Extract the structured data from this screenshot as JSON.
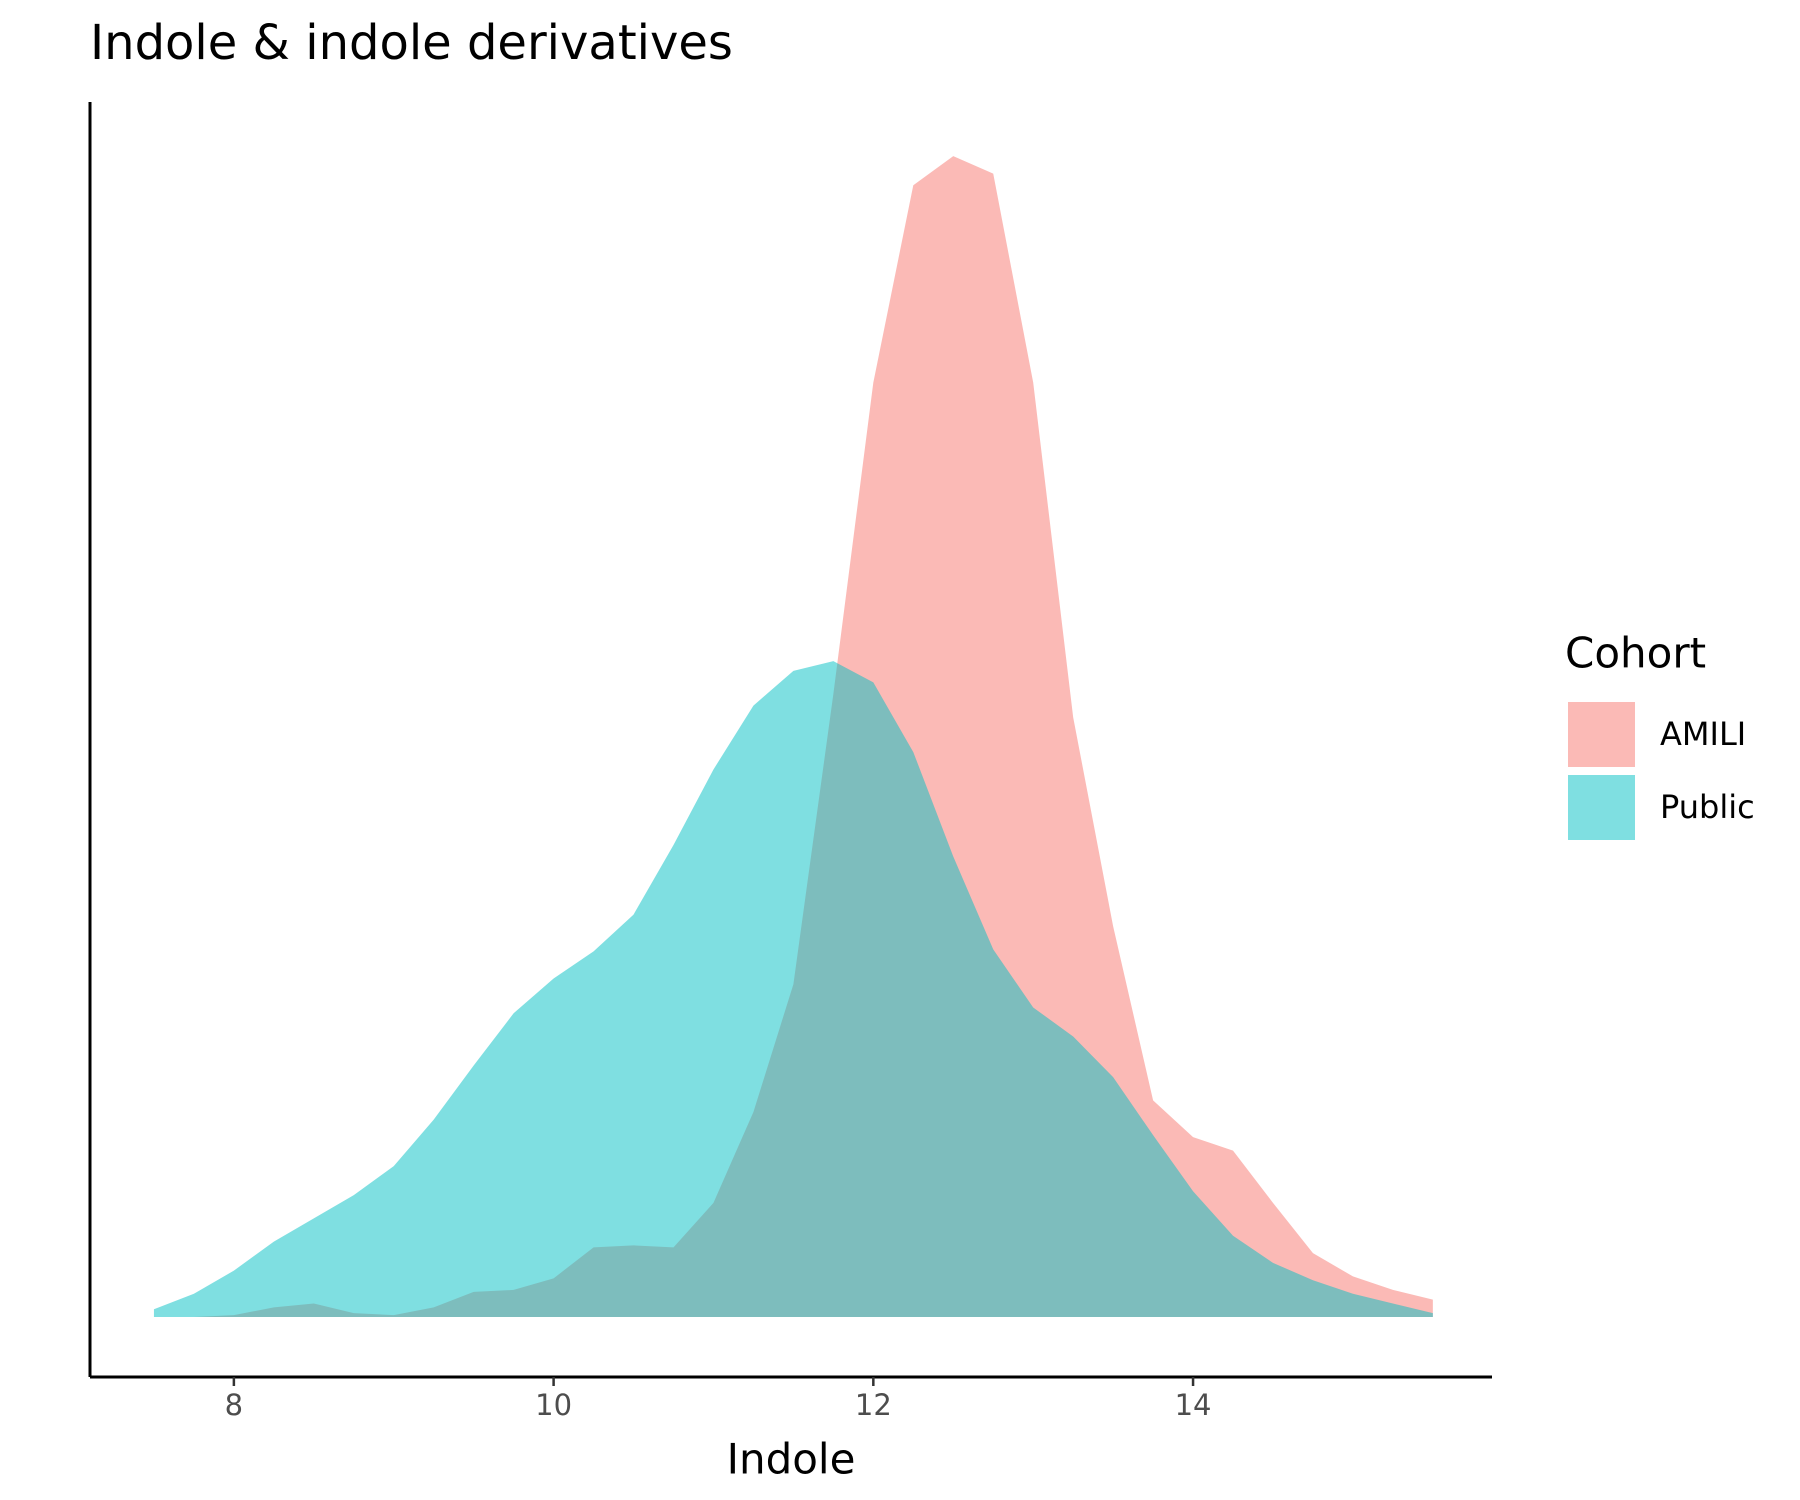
{
  "chart_data": {
    "type": "density",
    "title": "Indole & indole derivatives",
    "x_label": "Indole",
    "legend_title": "Cohort",
    "legend": "right",
    "x": [
      7.5,
      7.75,
      8.0,
      8.25,
      8.5,
      8.75,
      9.0,
      9.25,
      9.5,
      9.75,
      10.0,
      10.25,
      10.5,
      10.75,
      11.0,
      11.25,
      11.5,
      11.75,
      12.0,
      12.25,
      12.5,
      12.75,
      13.0,
      13.25,
      13.5,
      13.75,
      14.0,
      14.25,
      14.5,
      14.75,
      15.0,
      15.25,
      15.5
    ],
    "series": [
      {
        "name": "AMILI",
        "color": "#F8766D",
        "values": [
          0.0,
          0.0,
          0.001,
          0.005,
          0.007,
          0.002,
          0.001,
          0.005,
          0.013,
          0.014,
          0.02,
          0.036,
          0.037,
          0.036,
          0.059,
          0.106,
          0.172,
          0.322,
          0.483,
          0.585,
          0.6,
          0.591,
          0.483,
          0.31,
          0.202,
          0.112,
          0.093,
          0.086,
          0.059,
          0.033,
          0.021,
          0.014,
          0.009
        ]
      },
      {
        "name": "Public",
        "color": "#00BFC4",
        "values": [
          0.004,
          0.012,
          0.024,
          0.039,
          0.051,
          0.063,
          0.078,
          0.102,
          0.13,
          0.157,
          0.175,
          0.189,
          0.208,
          0.244,
          0.283,
          0.316,
          0.334,
          0.339,
          0.328,
          0.292,
          0.238,
          0.19,
          0.16,
          0.145,
          0.124,
          0.094,
          0.065,
          0.042,
          0.028,
          0.019,
          0.012,
          0.007,
          0.002
        ]
      }
    ],
    "fill_opacity": 0.5,
    "xlim": [
      7.1,
      15.87
    ],
    "xticks": [
      8,
      10,
      12,
      14
    ],
    "ylim": [
      -0.031,
      0.628
    ],
    "grid": false
  }
}
